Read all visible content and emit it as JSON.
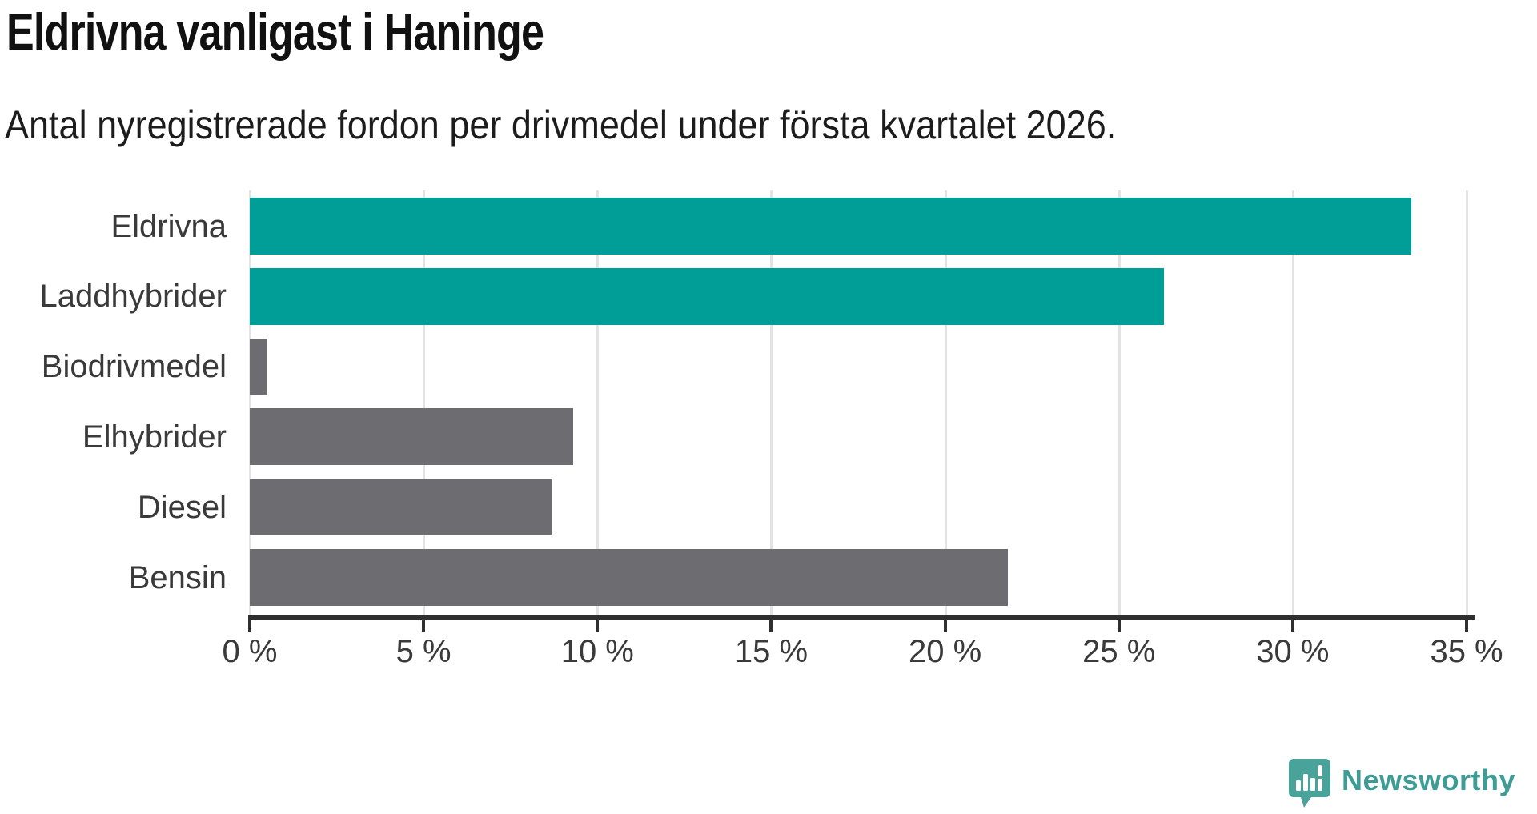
{
  "title": "Eldrivna vanligast i Haninge",
  "subtitle": "Antal nyregistrerade fordon per drivmedel under första kvartalet 2026.",
  "chart_data": {
    "type": "bar",
    "orientation": "horizontal",
    "title": "Eldrivna vanligast i Haninge",
    "subtitle": "Antal nyregistrerade fordon per drivmedel under första kvartalet 2026.",
    "categories": [
      "Eldrivna",
      "Laddhybrider",
      "Biodrivmedel",
      "Elhybrider",
      "Diesel",
      "Bensin"
    ],
    "values": [
      33.4,
      26.3,
      0.5,
      9.3,
      8.7,
      21.8
    ],
    "unit": "%",
    "xlim": [
      0,
      35
    ],
    "x_tick_values": [
      0,
      5,
      10,
      15,
      20,
      25,
      30,
      35
    ],
    "x_tick_labels": [
      "0 %",
      "5 %",
      "10 %",
      "15 %",
      "20 %",
      "25 %",
      "30 %",
      "35 %"
    ],
    "grid": true,
    "legend": "none",
    "highlight_color": "#009E96",
    "default_color": "#6C6C71",
    "bar_colors": [
      "#009E96",
      "#009E96",
      "#6C6C71",
      "#6C6C71",
      "#6C6C71",
      "#6C6C71"
    ],
    "gridline_color": "#E3E3E3",
    "axis_color": "#2F2F2F",
    "label_color": "#3A3A3A"
  },
  "footer": {
    "brand": "Newsworthy",
    "brand_color": "#3D9C94",
    "logo_icon": "newsworthy-chart-speech-bubble-icon"
  }
}
